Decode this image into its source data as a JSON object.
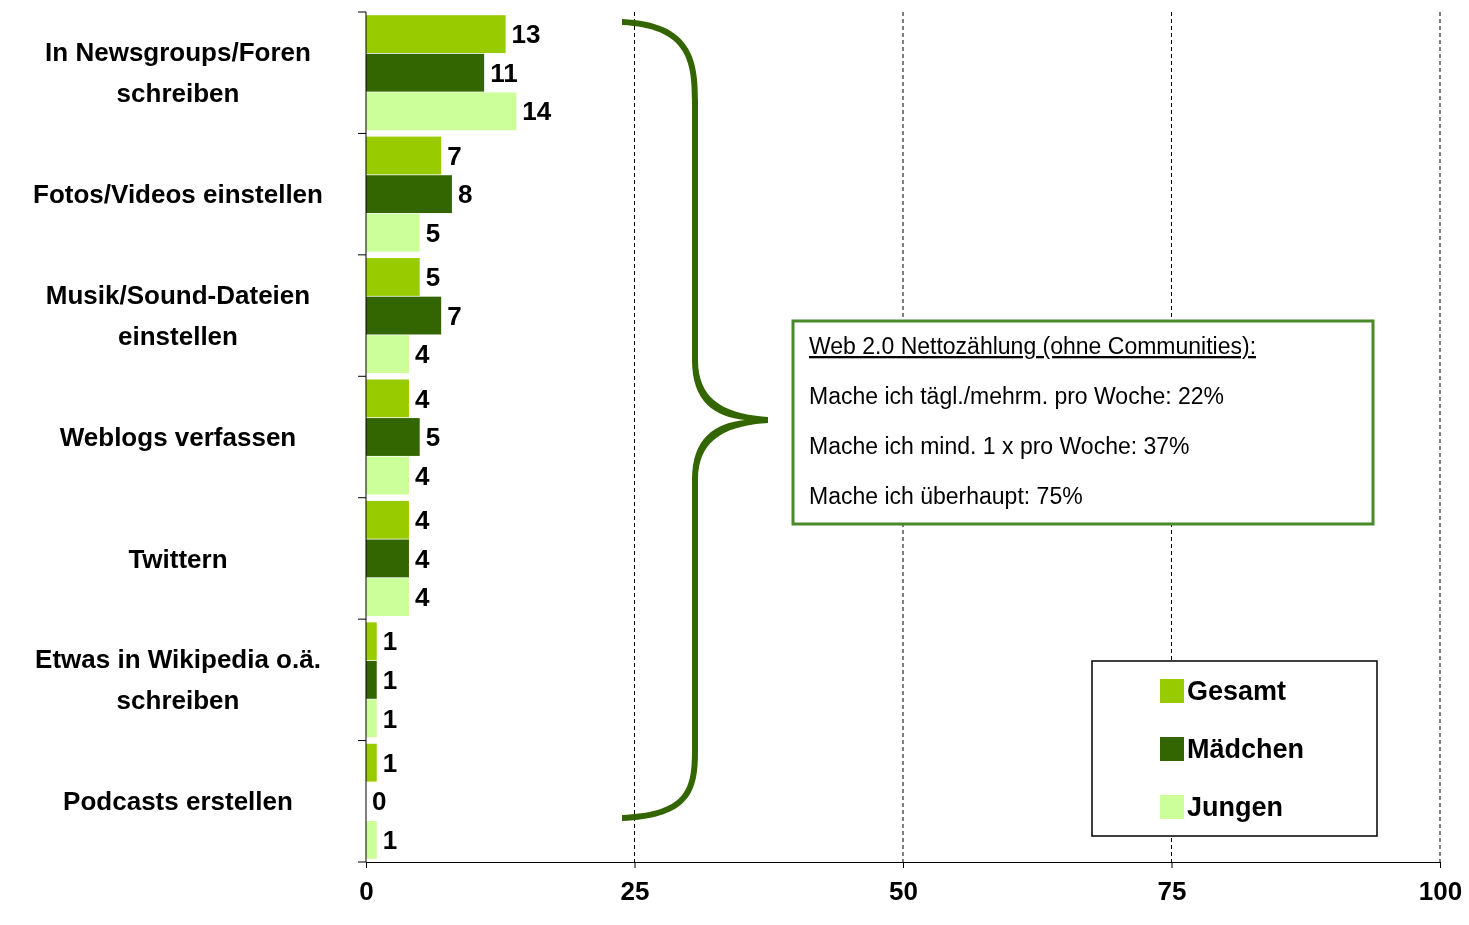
{
  "chart_data": {
    "type": "bar",
    "orientation": "horizontal",
    "categories": [
      "In Newsgroups/Foren schreiben",
      "Fotos/Videos einstellen",
      "Musik/Sound-Dateien einstellen",
      "Weblogs verfassen",
      "Twittern",
      "Etwas in Wikipedia o.ä. schreiben",
      "Podcasts erstellen"
    ],
    "series": [
      {
        "name": "Gesamt",
        "color": "#99cc00",
        "values": [
          13,
          7,
          5,
          4,
          4,
          1,
          1
        ]
      },
      {
        "name": "Mädchen",
        "color": "#336600",
        "values": [
          11,
          8,
          7,
          5,
          4,
          1,
          0
        ]
      },
      {
        "name": "Jungen",
        "color": "#ccff99",
        "values": [
          14,
          5,
          4,
          4,
          4,
          1,
          1
        ]
      }
    ],
    "xlim": [
      0,
      100
    ],
    "xticks": [
      0,
      25,
      50,
      75,
      100
    ],
    "grid": "x",
    "data_labels": true,
    "legend": "bottom right",
    "annotations": [
      "Web 2.0 Nettozählung (ohne Communities):",
      "Mache ich tägl./mehrm. pro Woche: 22%",
      "Mache ich mind. 1 x pro Woche: 37%",
      "Mache ich überhaupt: 75%"
    ]
  }
}
